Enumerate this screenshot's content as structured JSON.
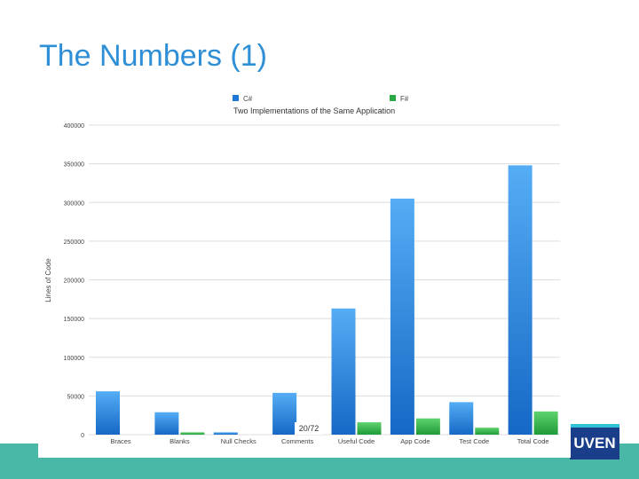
{
  "slide": {
    "title": "The Numbers (1)",
    "page_number": "20/72",
    "logo_text": "UVEN"
  },
  "colors": {
    "title": "#2f8fd6",
    "csharp_top": "#55adf5",
    "csharp_bottom": "#1568c5",
    "fsharp_top": "#5fd36d",
    "fsharp_bottom": "#1e9a38",
    "footer_band": "#4ab8a6",
    "logo_bg": "#1b3e8a"
  },
  "chart_data": {
    "type": "bar",
    "title": "Two Implementations of the Same Application",
    "xlabel": "",
    "ylabel": "Lines of Code",
    "categories": [
      "Braces",
      "Blanks",
      "Null Checks",
      "Comments",
      "Useful Code",
      "App Code",
      "Test Code",
      "Total Code"
    ],
    "series": [
      {
        "name": "C#",
        "values": [
          56000,
          29000,
          3000,
          54000,
          163000,
          305000,
          42000,
          348000
        ]
      },
      {
        "name": "F#",
        "values": [
          0,
          3000,
          0,
          0,
          16000,
          21000,
          9000,
          30000
        ]
      }
    ],
    "ylim": [
      0,
      400000
    ],
    "yticks": [
      "0",
      "50000",
      "100000",
      "150000",
      "200000",
      "250000",
      "300000",
      "350000",
      "400000"
    ],
    "grid": true,
    "legend_position": "top"
  }
}
